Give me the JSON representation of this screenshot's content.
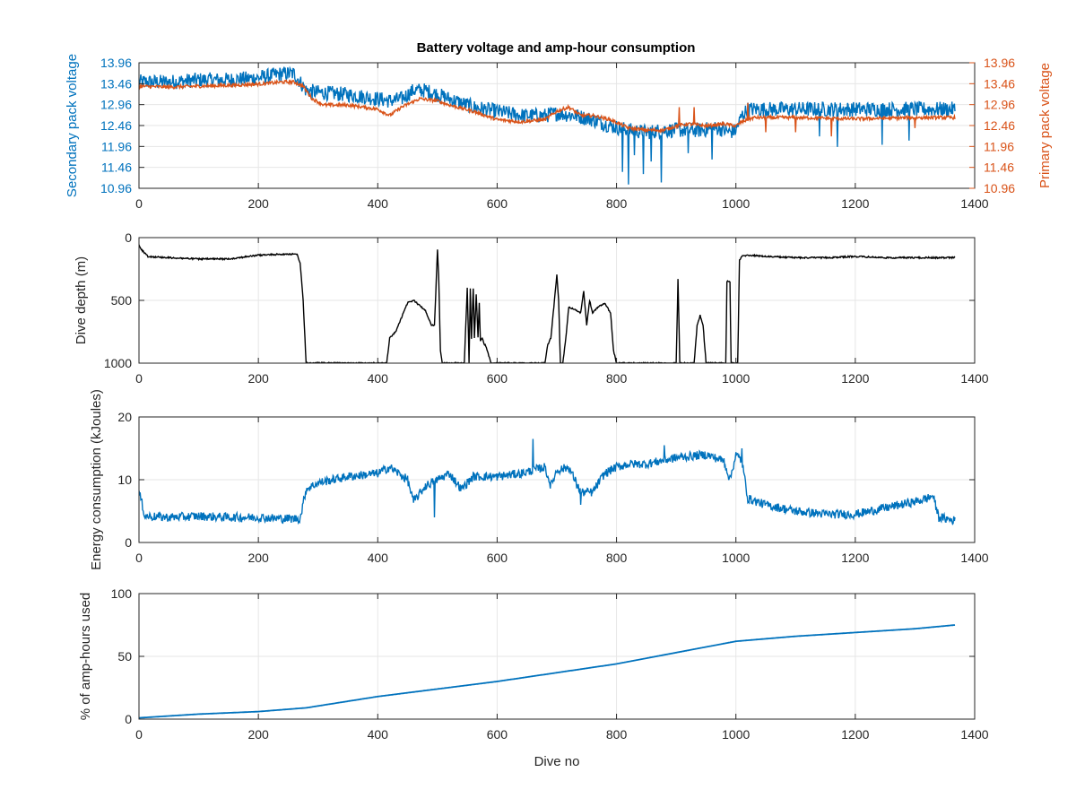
{
  "figure": {
    "title": "Battery voltage and amp-hour consumption"
  },
  "colors": {
    "blue": "#0072bd",
    "orange": "#d95319",
    "black": "#000000",
    "grid": "#e6e6e6",
    "axis": "#262626"
  },
  "chart_data": [
    {
      "type": "line",
      "title": "Battery voltage and amp-hour consumption",
      "xlabel": "",
      "ylabel": "Secondary pack voltage",
      "ylabel_right": "Primary pack voltage",
      "xlim": [
        0,
        1400
      ],
      "ylim": [
        10.96,
        13.96
      ],
      "ylim_right": [
        10.96,
        13.96
      ],
      "xticks": [
        0,
        200,
        400,
        600,
        800,
        1000,
        1200,
        1400
      ],
      "yticks": [
        "10.96",
        "11.46",
        "11.96",
        "12.46",
        "12.96",
        "13.46",
        "13.96"
      ],
      "yticks_right": [
        "10.96",
        "11.46",
        "11.96",
        "12.46",
        "12.96",
        "13.46",
        "13.96"
      ],
      "grid": true,
      "series": [
        {
          "axis": "left",
          "color": "#0072bd",
          "noise": 0.18,
          "spikes": [
            [
              810,
              11.35
            ],
            [
              820,
              11.05
            ],
            [
              830,
              11.75
            ],
            [
              845,
              11.3
            ],
            [
              858,
              11.6
            ],
            [
              875,
              11.1
            ],
            [
              920,
              11.8
            ],
            [
              960,
              11.65
            ],
            [
              1140,
              12.2
            ],
            [
              1170,
              11.95
            ],
            [
              1245,
              12.0
            ],
            [
              1290,
              12.1
            ]
          ],
          "x": [
            0,
            50,
            100,
            150,
            200,
            240,
            260,
            270,
            280,
            300,
            350,
            400,
            420,
            440,
            460,
            480,
            500,
            520,
            560,
            600,
            640,
            680,
            700,
            730,
            760,
            790,
            820,
            850,
            880,
            910,
            940,
            970,
            990,
            1000,
            1010,
            1020,
            1100,
            1200,
            1300,
            1367
          ],
          "y": [
            13.5,
            13.5,
            13.55,
            13.55,
            13.6,
            13.7,
            13.7,
            13.5,
            13.3,
            13.25,
            13.2,
            13.1,
            13.05,
            13.1,
            13.3,
            13.3,
            13.2,
            13.1,
            12.9,
            12.8,
            12.7,
            12.7,
            12.75,
            12.7,
            12.6,
            12.45,
            12.35,
            12.3,
            12.35,
            12.35,
            12.35,
            12.4,
            12.3,
            12.35,
            12.7,
            12.85,
            12.85,
            12.85,
            12.85,
            12.85
          ]
        },
        {
          "axis": "right",
          "color": "#d95319",
          "noise": 0.04,
          "spikes": [
            [
              905,
              12.9
            ],
            [
              930,
              12.9
            ],
            [
              1020,
              13.0
            ],
            [
              1050,
              12.3
            ],
            [
              1100,
              12.3
            ],
            [
              1160,
              12.2
            ],
            [
              1300,
              12.4
            ]
          ],
          "x": [
            0,
            50,
            100,
            150,
            200,
            240,
            260,
            275,
            290,
            310,
            350,
            400,
            420,
            440,
            470,
            500,
            520,
            560,
            600,
            640,
            680,
            700,
            720,
            740,
            760,
            790,
            820,
            850,
            880,
            900,
            920,
            950,
            980,
            1000,
            1010,
            1030,
            1100,
            1200,
            1300,
            1367
          ],
          "y": [
            13.4,
            13.38,
            13.4,
            13.42,
            13.45,
            13.5,
            13.5,
            13.4,
            13.1,
            12.95,
            12.95,
            12.85,
            12.7,
            12.9,
            13.1,
            13.05,
            12.95,
            12.8,
            12.6,
            12.55,
            12.6,
            12.8,
            12.9,
            12.7,
            12.7,
            12.6,
            12.4,
            12.35,
            12.35,
            12.45,
            12.5,
            12.45,
            12.5,
            12.45,
            12.55,
            12.65,
            12.65,
            12.62,
            12.65,
            12.65
          ]
        }
      ]
    },
    {
      "type": "line",
      "title": "",
      "xlabel": "",
      "ylabel": "Dive depth (m)",
      "xlim": [
        0,
        1400
      ],
      "ylim": [
        0,
        1000
      ],
      "y_reversed": true,
      "xticks": [
        0,
        200,
        400,
        600,
        800,
        1000,
        1200,
        1400
      ],
      "yticks": [
        "0",
        "500",
        "1000"
      ],
      "grid": true,
      "series": [
        {
          "color": "#000000",
          "noise": 6,
          "spikes": [],
          "x": [
            0,
            5,
            15,
            50,
            100,
            150,
            200,
            250,
            265,
            270,
            275,
            280,
            300,
            350,
            400,
            415,
            420,
            430,
            450,
            460,
            480,
            490,
            495,
            500,
            502,
            505,
            508,
            510,
            520,
            540,
            545,
            550,
            553,
            555,
            557,
            560,
            562,
            565,
            568,
            570,
            572,
            575,
            578,
            580,
            590,
            605,
            640,
            680,
            685,
            690,
            700,
            703,
            706,
            710,
            715,
            720,
            740,
            745,
            750,
            755,
            760,
            770,
            780,
            790,
            795,
            800,
            850,
            900,
            903,
            906,
            910,
            912,
            915,
            930,
            935,
            940,
            945,
            950,
            960,
            980,
            983,
            985,
            990,
            992,
            995,
            1000,
            1003,
            1006,
            1010,
            1020,
            1050,
            1100,
            1150,
            1200,
            1250,
            1300,
            1350,
            1367
          ],
          "y": [
            60,
            100,
            150,
            160,
            170,
            170,
            140,
            130,
            135,
            200,
            500,
            1000,
            1000,
            1000,
            1000,
            1000,
            800,
            750,
            520,
            500,
            580,
            700,
            700,
            100,
            300,
            900,
            1000,
            1000,
            1000,
            1000,
            1000,
            400,
            1000,
            400,
            800,
            400,
            800,
            450,
            800,
            520,
            820,
            800,
            850,
            850,
            1000,
            1000,
            1000,
            1000,
            850,
            800,
            300,
            500,
            1000,
            1000,
            800,
            550,
            600,
            420,
            700,
            500,
            600,
            550,
            520,
            600,
            900,
            1000,
            1000,
            1000,
            330,
            1000,
            1000,
            1000,
            1000,
            1000,
            700,
            620,
            700,
            1000,
            1000,
            1000,
            1000,
            350,
            350,
            1000,
            1000,
            1000,
            1000,
            180,
            150,
            140,
            150,
            160,
            160,
            150,
            160,
            160,
            160,
            160
          ]
        }
      ]
    },
    {
      "type": "line",
      "title": "",
      "xlabel": "",
      "ylabel": "Energy consumption (kJoules)",
      "xlim": [
        0,
        1400
      ],
      "ylim": [
        0,
        20
      ],
      "xticks": [
        0,
        200,
        400,
        600,
        800,
        1000,
        1200,
        1400
      ],
      "yticks": [
        "0",
        "10",
        "20"
      ],
      "grid": true,
      "series": [
        {
          "color": "#0072bd",
          "noise": 0.7,
          "spikes": [
            [
              495,
              4.0
            ],
            [
              660,
              16.5
            ],
            [
              740,
              6.0
            ],
            [
              880,
              15.5
            ],
            [
              1010,
              15.0
            ]
          ],
          "x": [
            0,
            3,
            10,
            50,
            100,
            150,
            200,
            240,
            270,
            280,
            300,
            350,
            400,
            420,
            450,
            460,
            480,
            500,
            520,
            540,
            560,
            600,
            640,
            680,
            690,
            700,
            720,
            740,
            760,
            780,
            800,
            820,
            850,
            900,
            950,
            980,
            990,
            1000,
            1010,
            1020,
            1050,
            1100,
            1150,
            1200,
            1250,
            1300,
            1320,
            1330,
            1340,
            1367
          ],
          "y": [
            8.0,
            7.0,
            4.2,
            4.0,
            4.2,
            4.0,
            4.0,
            3.8,
            3.8,
            8.5,
            9.5,
            10.5,
            11.0,
            12.0,
            10.0,
            6.5,
            9.0,
            10.0,
            11.0,
            8.5,
            10.5,
            10.5,
            11.0,
            12.0,
            9.0,
            11.5,
            12.0,
            8.0,
            8.0,
            11.0,
            12.0,
            12.5,
            12.5,
            13.5,
            14.0,
            13.0,
            10.0,
            14.0,
            13.0,
            7.0,
            6.0,
            5.0,
            4.5,
            4.5,
            5.5,
            6.5,
            7.0,
            7.5,
            4.0,
            3.5
          ]
        }
      ]
    },
    {
      "type": "line",
      "title": "",
      "xlabel": "Dive no",
      "ylabel": "% of amp-hours used",
      "xlim": [
        0,
        1400
      ],
      "ylim": [
        0,
        100
      ],
      "xticks": [
        0,
        200,
        400,
        600,
        800,
        1000,
        1200,
        1400
      ],
      "yticks": [
        "0",
        "50",
        "100"
      ],
      "grid": true,
      "series": [
        {
          "color": "#0072bd",
          "noise": 0,
          "spikes": [],
          "x": [
            0,
            100,
            200,
            280,
            400,
            500,
            600,
            700,
            800,
            900,
            1000,
            1050,
            1100,
            1200,
            1300,
            1367
          ],
          "y": [
            1,
            4,
            6,
            9,
            18,
            24,
            30,
            37,
            44,
            53,
            62,
            64,
            66,
            69,
            72,
            75
          ]
        }
      ]
    }
  ]
}
